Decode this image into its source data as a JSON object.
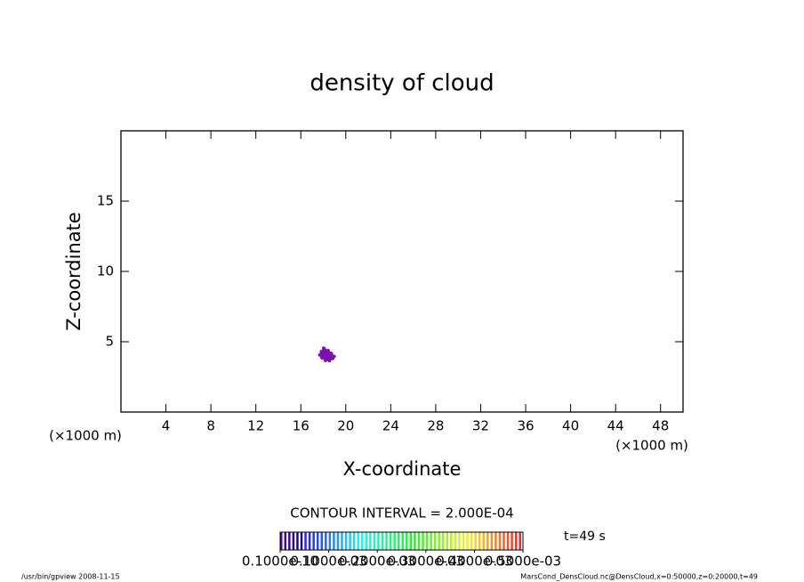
{
  "chart_data": {
    "type": "contour",
    "title": "density of cloud",
    "x_label": "X-coordinate",
    "y_label": "Z-coordinate",
    "x_unit": "(×1000 m)",
    "xlim": [
      0,
      50
    ],
    "ylim": [
      0,
      20
    ],
    "xticks": [
      4,
      8,
      12,
      16,
      20,
      24,
      28,
      32,
      36,
      40,
      44,
      48
    ],
    "yticks": [
      5,
      10,
      15
    ],
    "contour": {
      "color": "#7a10b0",
      "x": [
        18.0,
        18.5,
        18.9,
        19.1,
        18.6,
        18.2,
        17.7,
        17.6
      ],
      "y": [
        4.6,
        4.4,
        4.1,
        3.9,
        3.6,
        3.6,
        3.9,
        4.1
      ]
    },
    "contour_interval": "CONTOUR INTERVAL = 2.000E-04",
    "time_label": "t=49 s",
    "colorbar": {
      "ticks": [
        {
          "value": 1e-11,
          "label": "0.1000e-10"
        },
        {
          "value": 0.0001,
          "label": "0.1000e-03"
        },
        {
          "value": 0.0002,
          "label": "0.2000e-03"
        },
        {
          "value": 0.0003,
          "label": "0.3000e-03"
        },
        {
          "value": 0.0004,
          "label": "0.4000e-03"
        },
        {
          "value": 0.0005,
          "label": "0.5000e-03"
        }
      ]
    },
    "footer_left": "/usr/bin/gpview   2008-11-15",
    "footer_right": "MarsCond_DensCloud.nc@DensCloud,x=0:50000,z=0:20000,t=49"
  }
}
